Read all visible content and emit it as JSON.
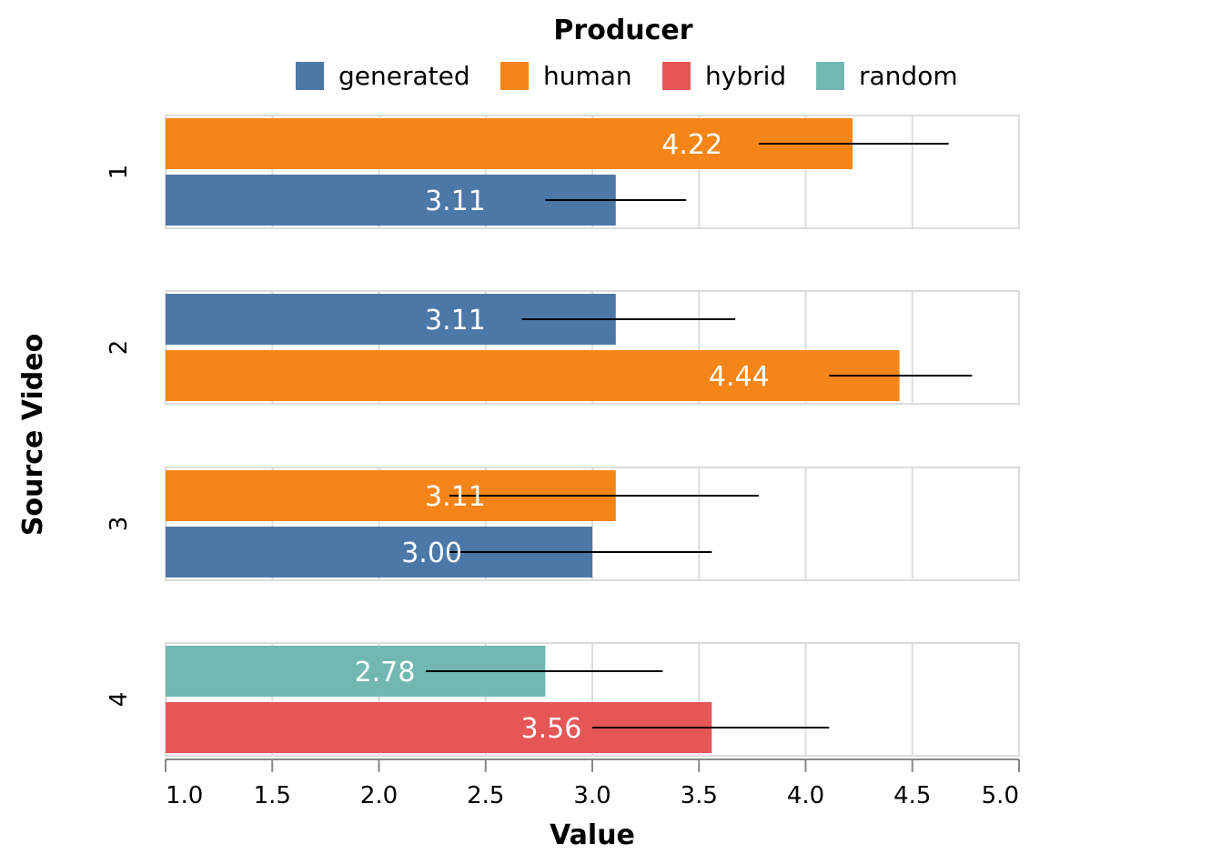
{
  "chart_data": {
    "type": "bar",
    "orientation": "horizontal",
    "facet_title": "Source Video",
    "xlabel": "Value",
    "xlim": [
      1.0,
      5.0
    ],
    "x_ticks": [
      "1.0",
      "1.5",
      "2.0",
      "2.5",
      "3.0",
      "3.5",
      "4.0",
      "4.5",
      "5.0"
    ],
    "legend": {
      "title": "Producer",
      "position": "top",
      "items": [
        {
          "name": "generated",
          "color": "#4c78a8"
        },
        {
          "name": "human",
          "color": "#f58518"
        },
        {
          "name": "hybrid",
          "color": "#e45756"
        },
        {
          "name": "random",
          "color": "#72b7b2"
        }
      ]
    },
    "facets": [
      {
        "label": "1",
        "bars": [
          {
            "producer": "human",
            "value": 4.22,
            "label": "4.22",
            "err_low": 3.78,
            "err_high": 4.67
          },
          {
            "producer": "generated",
            "value": 3.11,
            "label": "3.11",
            "err_low": 2.78,
            "err_high": 3.44
          }
        ]
      },
      {
        "label": "2",
        "bars": [
          {
            "producer": "generated",
            "value": 3.11,
            "label": "3.11",
            "err_low": 2.67,
            "err_high": 3.67
          },
          {
            "producer": "human",
            "value": 4.44,
            "label": "4.44",
            "err_low": 4.11,
            "err_high": 4.78
          }
        ]
      },
      {
        "label": "3",
        "bars": [
          {
            "producer": "human",
            "value": 3.11,
            "label": "3.11",
            "err_low": 2.33,
            "err_high": 3.78
          },
          {
            "producer": "generated",
            "value": 3.0,
            "label": "3.00",
            "err_low": 2.33,
            "err_high": 3.56
          }
        ]
      },
      {
        "label": "4",
        "bars": [
          {
            "producer": "random",
            "value": 2.78,
            "label": "2.78",
            "err_low": 2.22,
            "err_high": 3.33
          },
          {
            "producer": "hybrid",
            "value": 3.56,
            "label": "3.56",
            "err_low": 3.0,
            "err_high": 4.11
          }
        ]
      }
    ]
  }
}
